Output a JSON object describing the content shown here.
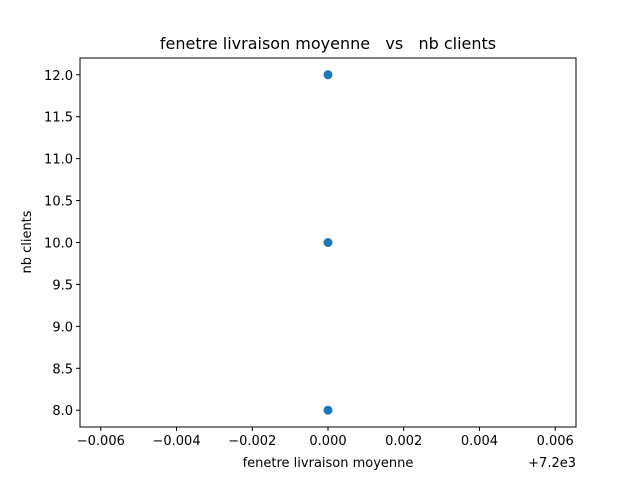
{
  "chart_data": {
    "type": "scatter",
    "title": "fenetre livraison moyenne   vs   nb clients",
    "xlabel": "fenetre livraison moyenne",
    "ylabel": "nb clients",
    "x_offset_label": "+7.2e3",
    "xlim": [
      7199.99345,
      7200.00655
    ],
    "ylim": [
      7.8,
      12.2
    ],
    "xticks": [
      7199.994,
      7199.996,
      7199.998,
      7200.0,
      7200.002,
      7200.004,
      7200.006
    ],
    "xtick_labels": [
      "−0.006",
      "−0.004",
      "−0.002",
      "0.000",
      "0.002",
      "0.004",
      "0.006"
    ],
    "yticks": [
      8.0,
      8.5,
      9.0,
      9.5,
      10.0,
      10.5,
      11.0,
      11.5,
      12.0
    ],
    "ytick_labels": [
      "8.0",
      "8.5",
      "9.0",
      "9.5",
      "10.0",
      "10.5",
      "11.0",
      "11.5",
      "12.0"
    ],
    "points": [
      {
        "x": 7200,
        "y": 8
      },
      {
        "x": 7200,
        "y": 10
      },
      {
        "x": 7200,
        "y": 12
      }
    ],
    "marker_color": "#1f77b4",
    "grid": false,
    "legend": false
  }
}
